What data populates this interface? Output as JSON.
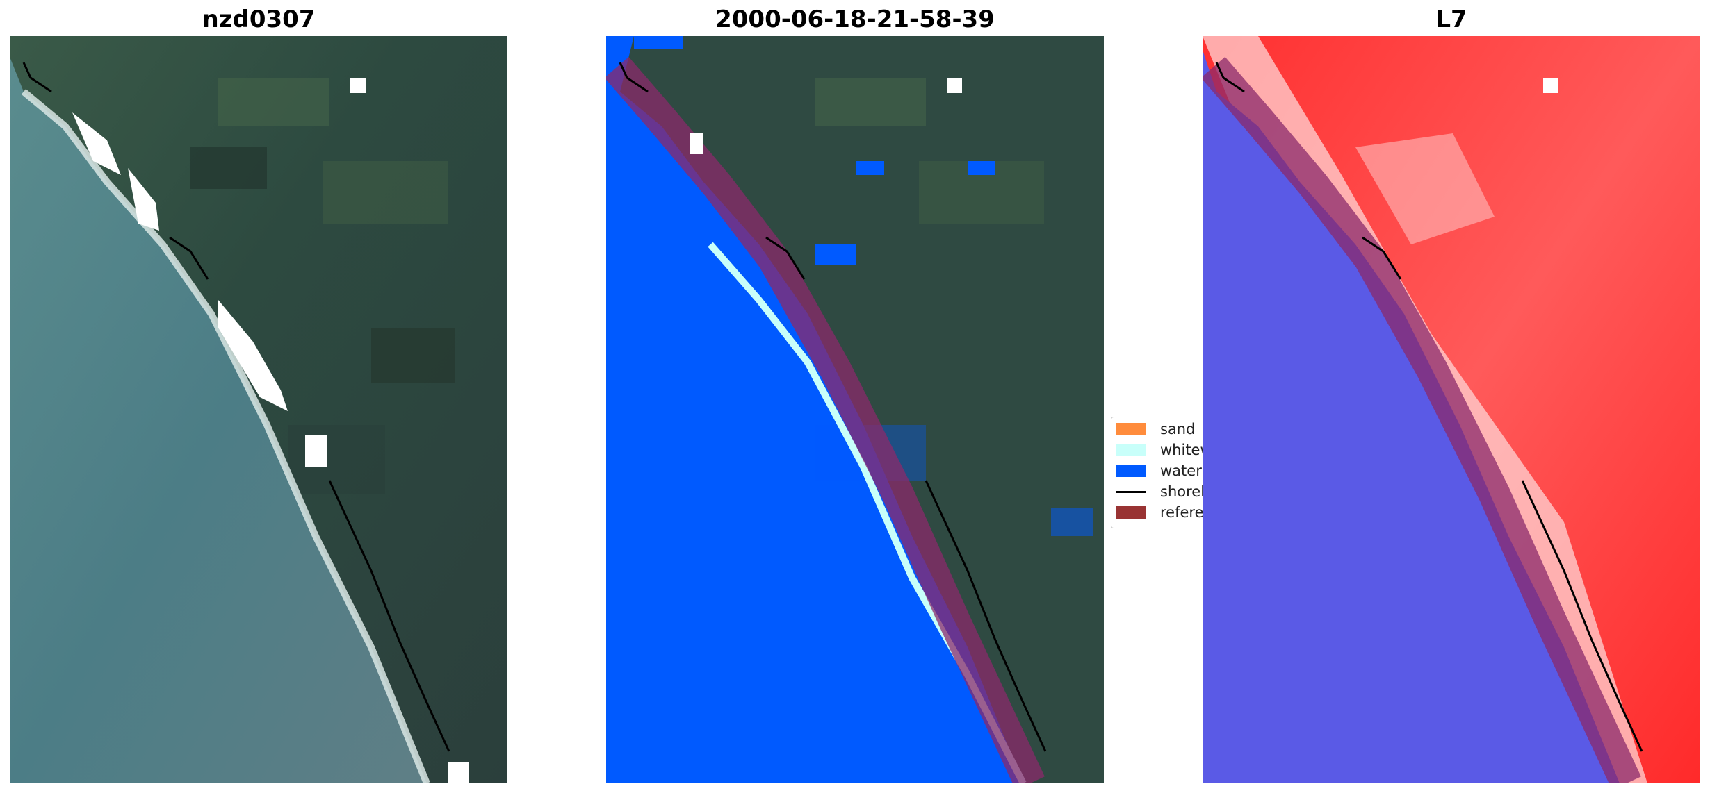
{
  "panels": [
    {
      "title": "nzd0307"
    },
    {
      "title": "2000-06-18-21-58-39"
    },
    {
      "title": "L7"
    }
  ],
  "legend": {
    "items": [
      {
        "label": "sand",
        "color": "#ff8c3c"
      },
      {
        "label": "whitew",
        "color": "#c8fffa"
      },
      {
        "label": "water",
        "color": "#005aff"
      },
      {
        "label": "shorel",
        "color": "#000000"
      },
      {
        "label": "referen",
        "color": "#993333"
      }
    ]
  },
  "colors": {
    "ocean": "#4f7e86",
    "land": "#2f4a42",
    "water_class": "#005aff",
    "reference_buffer": "#8b2a6b",
    "index_water": "#5a5ae6",
    "index_land": "#ff2a2a"
  }
}
